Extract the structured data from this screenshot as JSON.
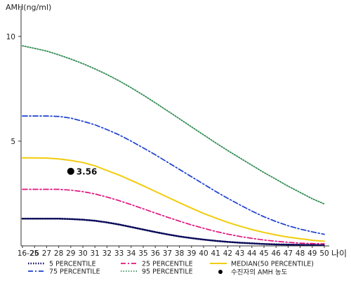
{
  "chart_data": {
    "type": "line",
    "title": "",
    "ylabel": "AMH(ng/ml)",
    "xlabel": "나이",
    "ylim": [
      0,
      11
    ],
    "y_ticks": [
      5,
      10
    ],
    "grid": false,
    "legend_placement": "bottom",
    "categories": [
      "16-25",
      "26",
      "27",
      "28",
      "29",
      "30",
      "31",
      "32",
      "33",
      "34",
      "35",
      "36",
      "37",
      "38",
      "39",
      "40",
      "41",
      "42",
      "43",
      "44",
      "45",
      "46",
      "47",
      "48",
      "49",
      "50"
    ],
    "series": [
      {
        "name": "5 PERCENTILE",
        "color": "#0a0a5a",
        "dash": "dot-heavy",
        "values": [
          1.3,
          1.3,
          1.3,
          1.3,
          1.28,
          1.25,
          1.2,
          1.12,
          1.02,
          0.9,
          0.78,
          0.66,
          0.55,
          0.45,
          0.37,
          0.3,
          0.24,
          0.19,
          0.15,
          0.12,
          0.09,
          0.07,
          0.06,
          0.05,
          0.04,
          0.03
        ]
      },
      {
        "name": "25 PERCENTILE",
        "color": "#e0147e",
        "dash": "dash-dot",
        "values": [
          2.7,
          2.7,
          2.7,
          2.7,
          2.66,
          2.59,
          2.48,
          2.33,
          2.16,
          1.97,
          1.77,
          1.57,
          1.37,
          1.18,
          1.0,
          0.84,
          0.69,
          0.56,
          0.45,
          0.36,
          0.28,
          0.22,
          0.17,
          0.13,
          0.11,
          0.1
        ]
      },
      {
        "name": "MEDIAN(50 PERCENTILE)",
        "color": "#f2cc0c",
        "dash": "solid",
        "values": [
          4.2,
          4.2,
          4.19,
          4.15,
          4.08,
          3.98,
          3.82,
          3.6,
          3.38,
          3.13,
          2.87,
          2.6,
          2.33,
          2.06,
          1.8,
          1.55,
          1.33,
          1.12,
          0.94,
          0.78,
          0.64,
          0.52,
          0.42,
          0.34,
          0.27,
          0.22
        ]
      },
      {
        "name": "75 PERCENTILE",
        "color": "#1a3fd0",
        "dash": "dash-dot",
        "values": [
          6.2,
          6.2,
          6.2,
          6.18,
          6.1,
          5.95,
          5.78,
          5.55,
          5.3,
          5.0,
          4.68,
          4.35,
          4.0,
          3.65,
          3.3,
          2.95,
          2.6,
          2.27,
          1.96,
          1.66,
          1.39,
          1.16,
          0.96,
          0.8,
          0.67,
          0.55
        ]
      },
      {
        "name": "95 PERCENTILE",
        "color": "#2e8b50",
        "dash": "dotted",
        "values": [
          9.55,
          9.43,
          9.3,
          9.12,
          8.92,
          8.7,
          8.45,
          8.18,
          7.88,
          7.55,
          7.2,
          6.83,
          6.45,
          6.07,
          5.68,
          5.3,
          4.92,
          4.55,
          4.2,
          3.85,
          3.5,
          3.18,
          2.85,
          2.55,
          2.25,
          2.0
        ]
      }
    ],
    "points": [
      {
        "name": "수진자의 AMH 농도",
        "x": "29",
        "y": 3.56,
        "label": "3.56",
        "color": "#000000"
      }
    ]
  }
}
